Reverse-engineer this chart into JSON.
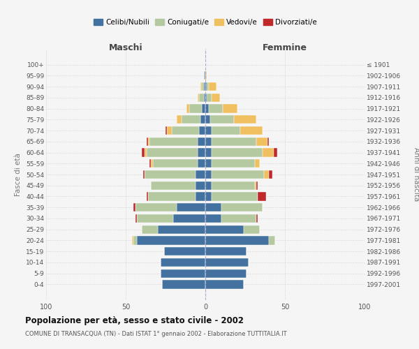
{
  "age_groups": [
    "0-4",
    "5-9",
    "10-14",
    "15-19",
    "20-24",
    "25-29",
    "30-34",
    "35-39",
    "40-44",
    "45-49",
    "50-54",
    "55-59",
    "60-64",
    "65-69",
    "70-74",
    "75-79",
    "80-84",
    "85-89",
    "90-94",
    "95-99",
    "100+"
  ],
  "birth_years": [
    "1997-2001",
    "1992-1996",
    "1987-1991",
    "1982-1986",
    "1977-1981",
    "1972-1976",
    "1967-1971",
    "1962-1966",
    "1957-1961",
    "1952-1956",
    "1947-1951",
    "1942-1946",
    "1937-1941",
    "1932-1936",
    "1927-1931",
    "1922-1926",
    "1917-1921",
    "1912-1916",
    "1907-1911",
    "1902-1906",
    "≤ 1901"
  ],
  "male": {
    "celibi": [
      27,
      28,
      28,
      26,
      43,
      30,
      20,
      18,
      6,
      6,
      6,
      5,
      5,
      5,
      4,
      3,
      2,
      1,
      1,
      1,
      0
    ],
    "coniugati": [
      0,
      0,
      0,
      0,
      2,
      10,
      23,
      26,
      30,
      28,
      32,
      28,
      32,
      30,
      17,
      12,
      8,
      3,
      1,
      0,
      0
    ],
    "vedovi": [
      0,
      0,
      0,
      0,
      1,
      0,
      0,
      0,
      0,
      0,
      0,
      1,
      1,
      1,
      3,
      3,
      2,
      1,
      1,
      0,
      0
    ],
    "divorziati": [
      0,
      0,
      0,
      0,
      0,
      0,
      1,
      1,
      1,
      0,
      1,
      1,
      2,
      1,
      1,
      0,
      0,
      0,
      0,
      0,
      0
    ]
  },
  "female": {
    "nubili": [
      24,
      26,
      27,
      26,
      40,
      24,
      10,
      10,
      4,
      4,
      4,
      4,
      4,
      4,
      4,
      3,
      2,
      1,
      1,
      0,
      0
    ],
    "coniugate": [
      0,
      0,
      0,
      0,
      4,
      10,
      22,
      26,
      29,
      27,
      33,
      27,
      32,
      28,
      18,
      15,
      9,
      3,
      1,
      0,
      0
    ],
    "vedove": [
      0,
      0,
      0,
      0,
      0,
      0,
      0,
      0,
      0,
      1,
      3,
      3,
      7,
      7,
      14,
      14,
      9,
      5,
      5,
      1,
      0
    ],
    "divorziate": [
      0,
      0,
      0,
      0,
      0,
      0,
      1,
      0,
      5,
      1,
      2,
      0,
      2,
      1,
      0,
      0,
      0,
      0,
      0,
      0,
      0
    ]
  },
  "colors": {
    "celibi": "#4472a0",
    "coniugati": "#b5c9a0",
    "vedovi": "#f0c060",
    "divorziati": "#c0282a"
  },
  "xlim": 100,
  "title": "Popolazione per età, sesso e stato civile - 2002",
  "subtitle": "COMUNE DI TRANSACQUA (TN) - Dati ISTAT 1° gennaio 2002 - Elaborazione TUTTITALIA.IT",
  "ylabel_left": "Fasce di età",
  "ylabel_right": "Anni di nascita",
  "xlabel_left": "Maschi",
  "xlabel_right": "Femmine",
  "legend_labels": [
    "Celibi/Nubili",
    "Coniugati/e",
    "Vedovi/e",
    "Divorziati/e"
  ],
  "background_color": "#f5f5f5"
}
